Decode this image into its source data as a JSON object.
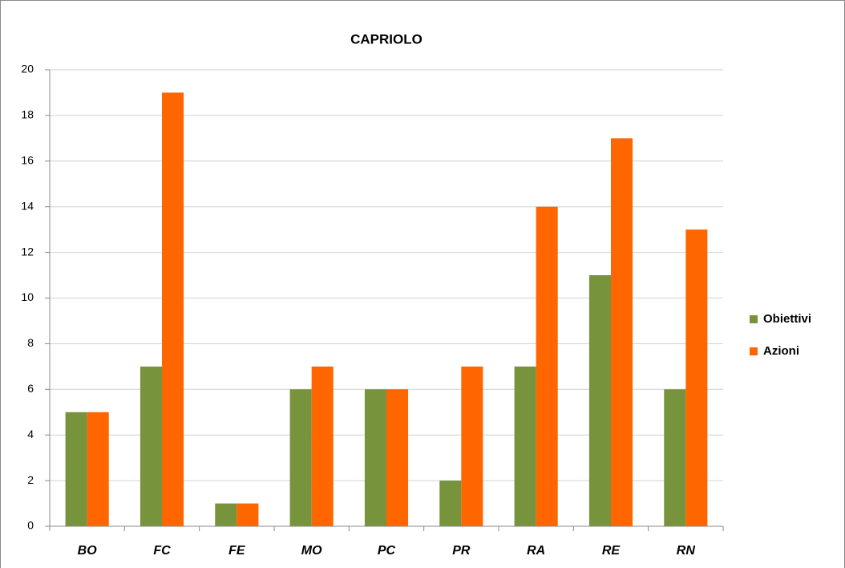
{
  "chart_data": {
    "type": "bar",
    "title": "CAPRIOLO",
    "categories": [
      "BO",
      "FC",
      "FE",
      "MO",
      "PC",
      "PR",
      "RA",
      "RE",
      "RN"
    ],
    "series": [
      {
        "name": "Obiettivi",
        "color": "#77933c",
        "values": [
          5,
          7,
          1,
          6,
          6,
          2,
          7,
          11,
          6
        ]
      },
      {
        "name": "Azioni",
        "color": "#ff6600",
        "values": [
          5,
          19,
          1,
          7,
          6,
          7,
          14,
          17,
          13
        ]
      }
    ],
    "ylim": [
      0,
      20
    ],
    "yticks": [
      0,
      2,
      4,
      6,
      8,
      10,
      12,
      14,
      16,
      18,
      20
    ],
    "grid": true,
    "legend": "right"
  }
}
